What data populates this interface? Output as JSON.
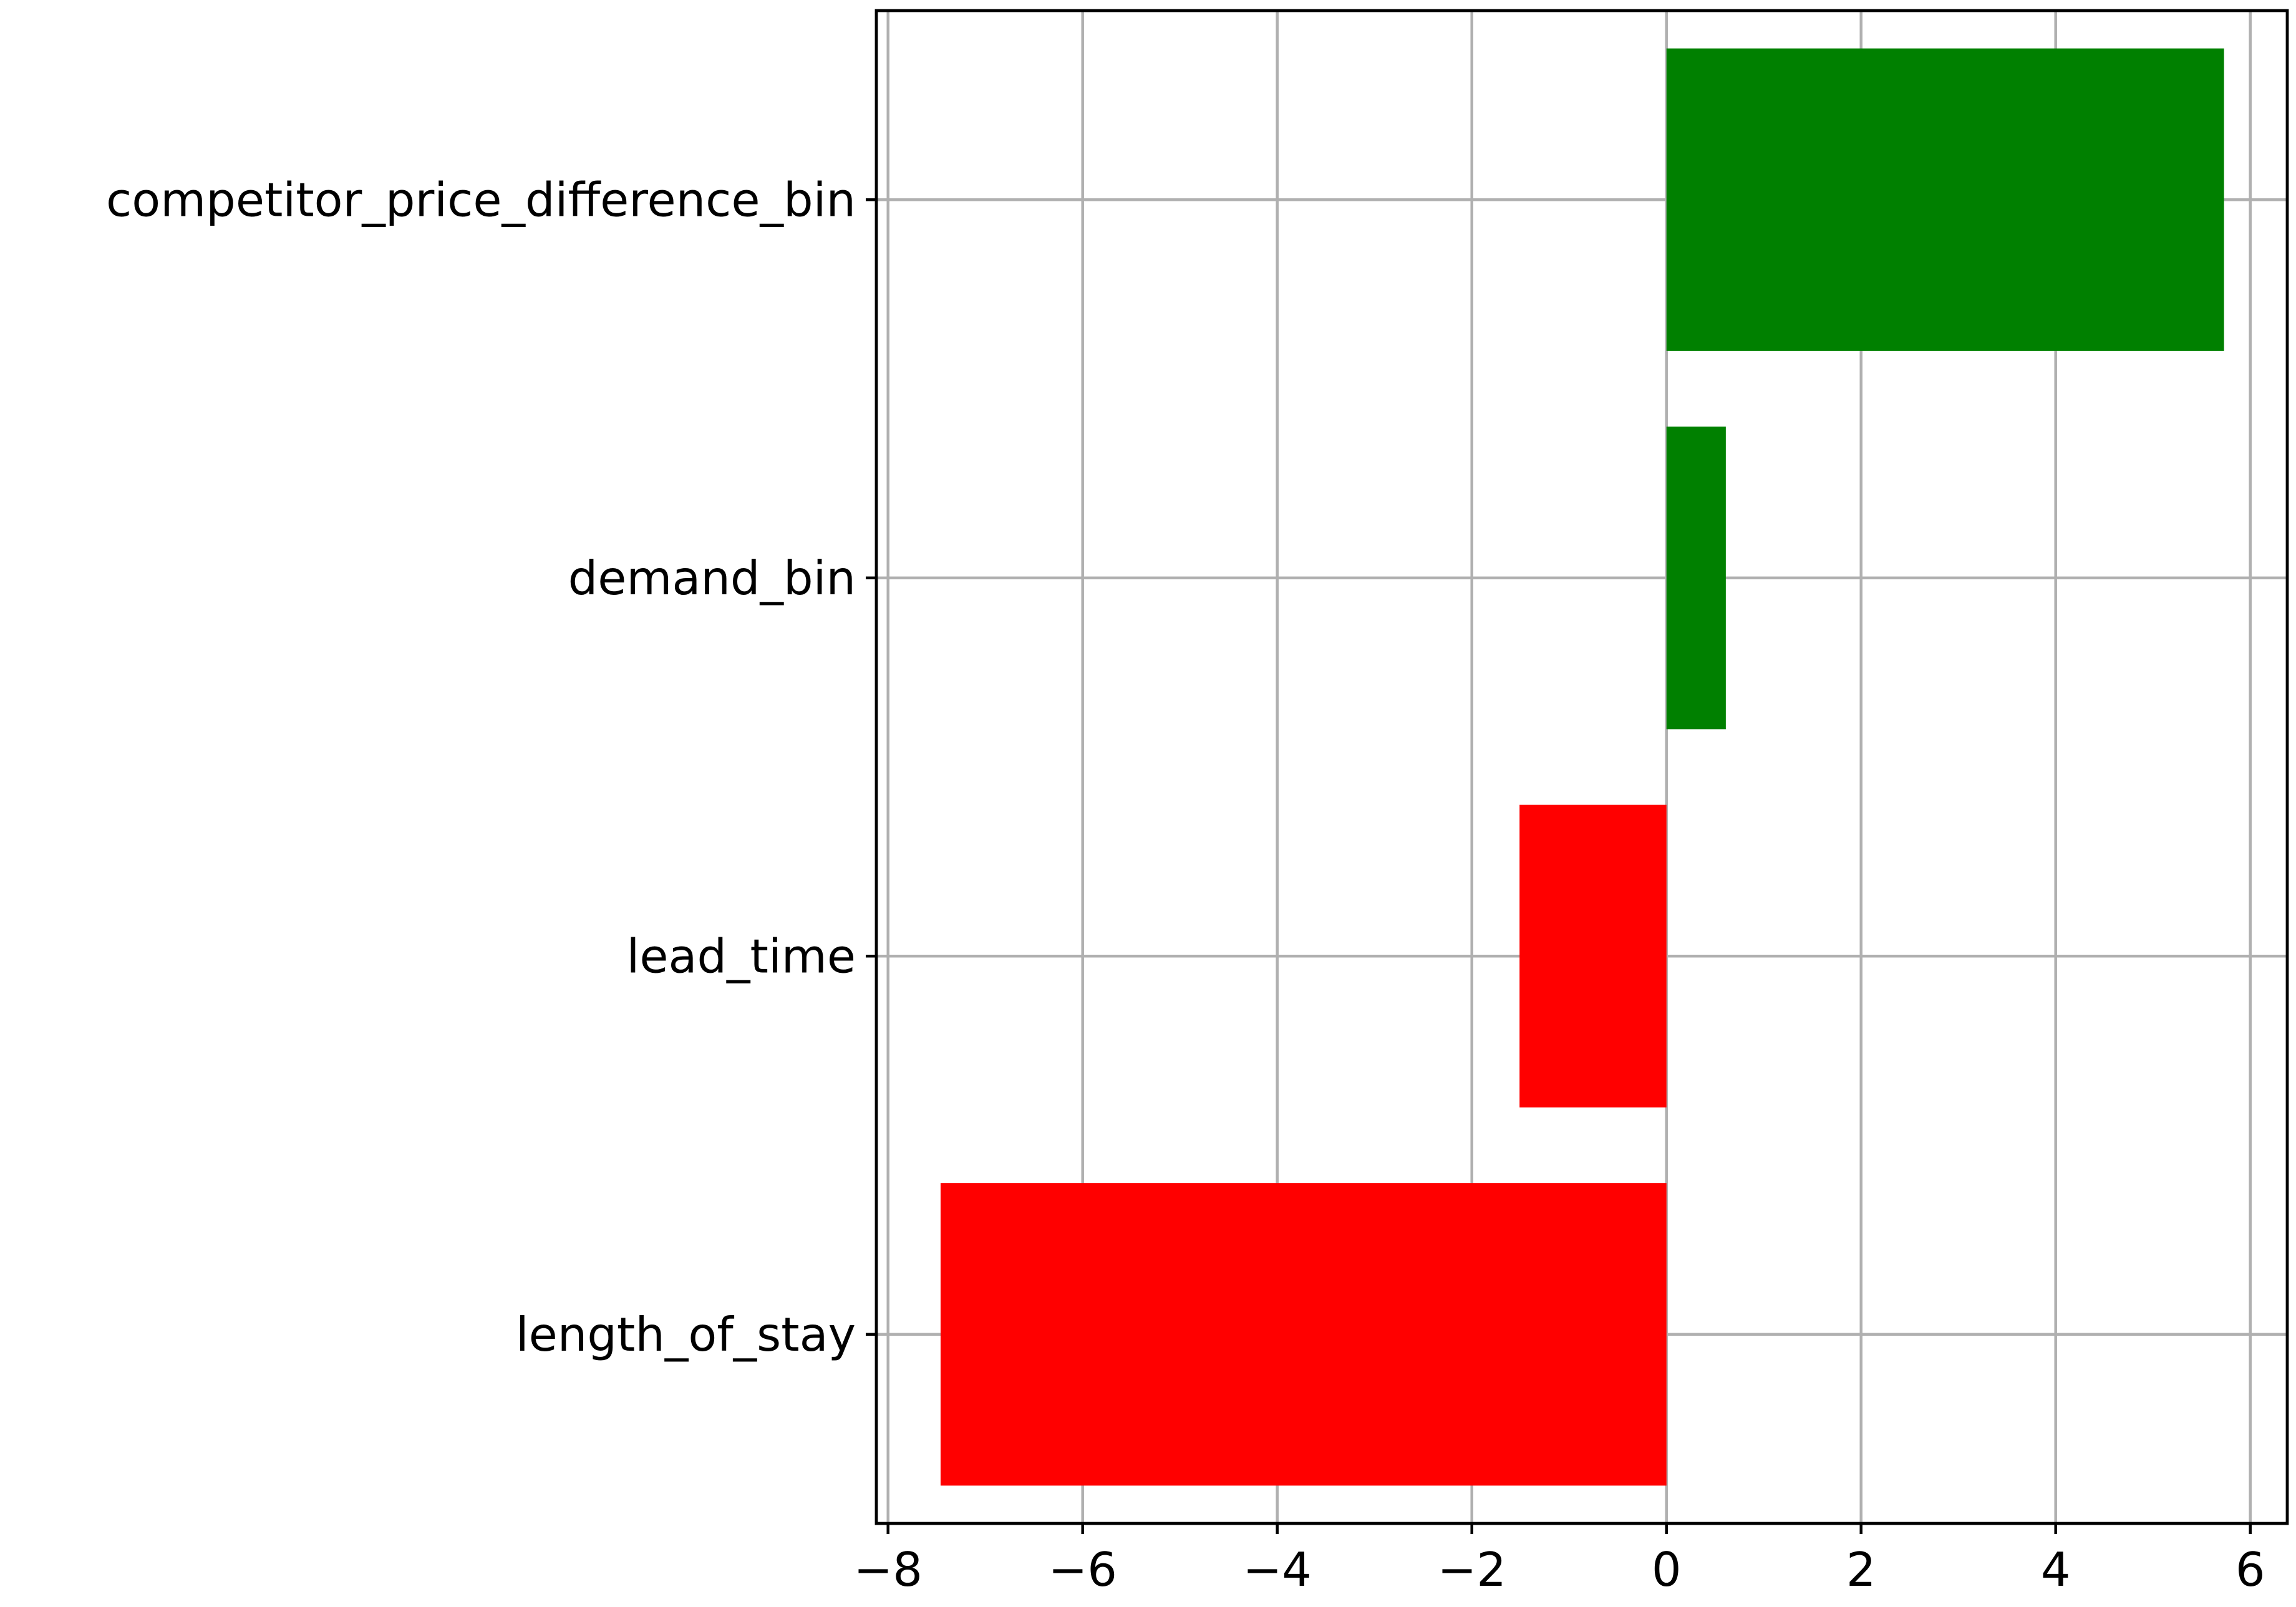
{
  "chart_data": {
    "type": "bar",
    "orientation": "horizontal",
    "categories": [
      "competitor_price_difference_bin",
      "demand_bin",
      "lead_time",
      "length_of_stay"
    ],
    "values": [
      5.73,
      0.61,
      -1.51,
      -7.46
    ],
    "xlim": [
      -8.12,
      6.38
    ],
    "xticks": [
      -8,
      -6,
      -4,
      -2,
      0,
      2,
      4,
      6
    ],
    "xtick_labels": [
      "−8",
      "−6",
      "−4",
      "−2",
      "0",
      "2",
      "4",
      "6"
    ],
    "grid": true,
    "colors": {
      "positive": "#008000",
      "negative": "#ff0000",
      "grid": "#b0b0b0",
      "frame": "#000000"
    }
  }
}
